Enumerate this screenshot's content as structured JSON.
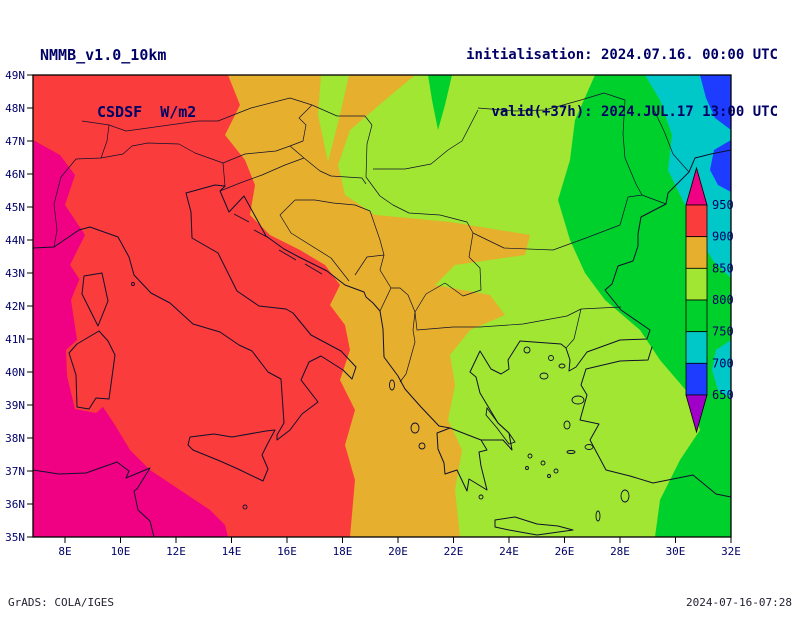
{
  "header": {
    "model": "NMMB_v1.0_10km",
    "variable": "CSDSF  W/m2",
    "init_line": "initialisation: 2024.07.16. 00:00 UTC",
    "valid_line": "valid(+37h): 2024.JUL.17 13:00 UTC"
  },
  "map": {
    "lat_ticks": [
      "49N",
      "48N",
      "47N",
      "46N",
      "45N",
      "44N",
      "43N",
      "42N",
      "41N",
      "40N",
      "39N",
      "38N",
      "37N",
      "36N",
      "35N"
    ],
    "lon_ticks": [
      "8E",
      "10E",
      "12E",
      "14E",
      "16E",
      "18E",
      "20E",
      "22E",
      "24E",
      "26E",
      "28E",
      "30E",
      "32E"
    ]
  },
  "legend": {
    "tick_labels": [
      "950",
      "900",
      "850",
      "800",
      "750",
      "700",
      "650"
    ],
    "band_colors_top_to_bottom": [
      "#f00082",
      "#fa3c3c",
      "#e6af2d",
      "#a0e632",
      "#00d02c",
      "#00c8c8",
      "#1e3cff",
      "#a000c8"
    ]
  },
  "footer": {
    "left": "GrADS: COLA/IGES",
    "right": "2024-07-16-07:28"
  },
  "chart_data": {
    "type": "heatmap",
    "title": "NMMB_v1.0_10km CSDSF W/m2",
    "units": "W/m2",
    "x_ticks": [
      "8E",
      "10E",
      "12E",
      "14E",
      "16E",
      "18E",
      "20E",
      "22E",
      "24E",
      "26E",
      "28E",
      "30E",
      "32E"
    ],
    "y_ticks": [
      "49N",
      "48N",
      "47N",
      "46N",
      "45N",
      "44N",
      "43N",
      "42N",
      "41N",
      "40N",
      "39N",
      "38N",
      "37N",
      "36N",
      "35N"
    ],
    "contour_levels": [
      650,
      700,
      750,
      800,
      850,
      900,
      950
    ],
    "level_colors_low_to_high": [
      "#a000c8",
      "#1e3cff",
      "#00c8c8",
      "#00d02c",
      "#a0e632",
      "#e6af2d",
      "#fa3c3c",
      "#f00082"
    ],
    "field_bands_west_to_east": [
      {
        "band": ">950",
        "color": "#f00082",
        "region": "far west / western Mediterranean, seas around Corsica-Sardinia, NW Africa coast"
      },
      {
        "band": "900-950",
        "color": "#fa3c3c",
        "region": "Italy, Sicily, Tyrrhenian and Ionian seas"
      },
      {
        "band": "850-900",
        "color": "#e6af2d",
        "region": "NE Italy, Adriatic, western Balkans, western Greece, lobes over Serbia and Macedonia"
      },
      {
        "band": "800-850",
        "color": "#a0e632",
        "region": "eastern Balkans, Aegean, western Turkey, Crete"
      },
      {
        "band": "750-800",
        "color": "#00d02c",
        "region": "eastern Romania, eastern Bulgaria, western Black Sea"
      },
      {
        "band": "700-750",
        "color": "#00c8c8",
        "region": "northeastern corner, NW Black Sea coastal strip"
      },
      {
        "band": "650-700",
        "color": "#1e3cff",
        "region": "small patches in top-right corner"
      }
    ]
  }
}
